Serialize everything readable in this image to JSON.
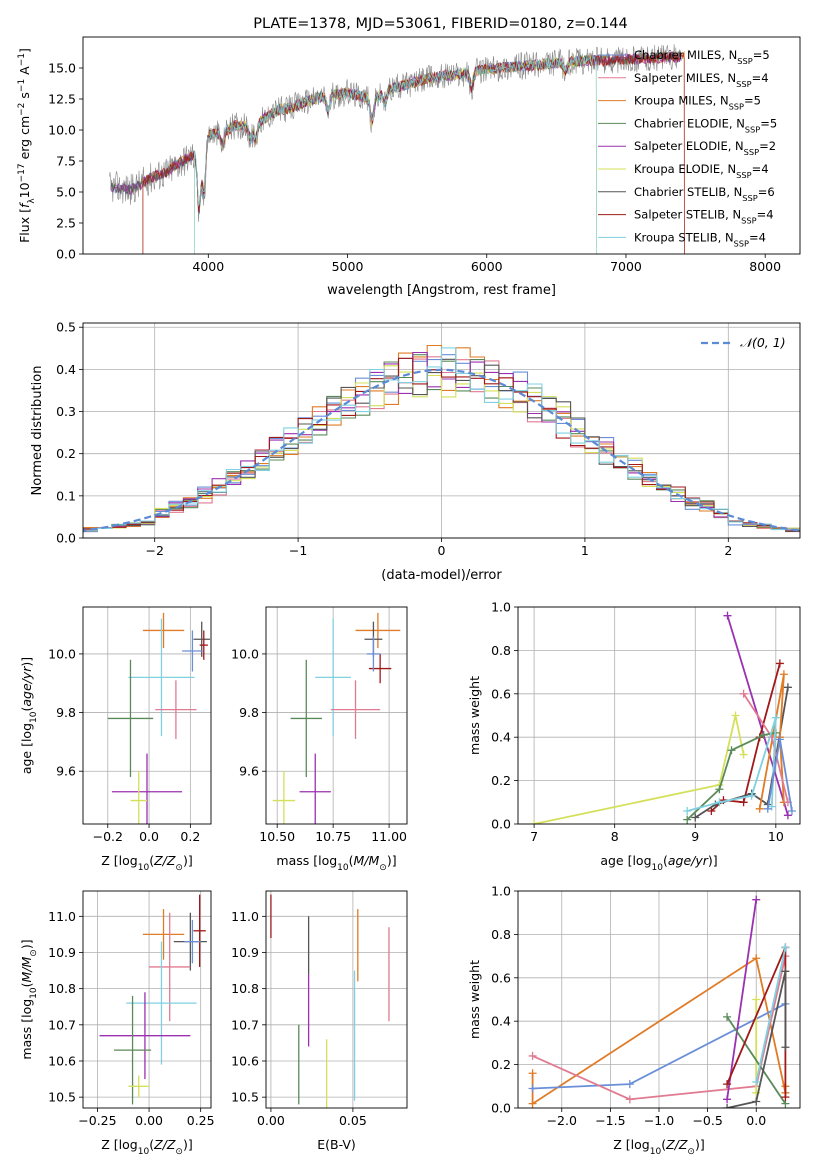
{
  "colors": {
    "chabrier_miles": "#6a8fd8",
    "salpeter_miles": "#e07b91",
    "kroupa_miles": "#e07b26",
    "chabrier_elodie": "#5a8a5a",
    "salpeter_elodie": "#9b30b0",
    "kroupa_elodie": "#d4e05a",
    "chabrier_stelib": "#555555",
    "salpeter_stelib": "#a01818",
    "kroupa_stelib": "#7fd0e0",
    "normal_curve": "#5b8bd6",
    "grid": "#b0b0b0"
  },
  "chart_data": [
    {
      "id": "spectrum",
      "type": "line",
      "title": "PLATE=1378, MJD=53061, FIBERID=0180, z=0.144",
      "xlabel": "wavelength [Angstrom, rest frame]",
      "ylabel": "Flux [f_λ 10^-17 erg cm^-2 s^-1 A^-1]",
      "xlim": [
        3100,
        8250
      ],
      "ylim": [
        0,
        17.5
      ],
      "xticks": [
        "4000",
        "5000",
        "6000",
        "7000",
        "8000"
      ],
      "yticks": [
        "0.0",
        "2.5",
        "5.0",
        "7.5",
        "10.0",
        "12.5",
        "15.0"
      ],
      "legend_position": "right",
      "legend": [
        {
          "label": "Chabrier MILES, N_SSP=5",
          "color": "chabrier_miles"
        },
        {
          "label": "Salpeter MILES, N_SSP=4",
          "color": "salpeter_miles"
        },
        {
          "label": "Kroupa MILES, N_SSP=5",
          "color": "kroupa_miles"
        },
        {
          "label": "Chabrier ELODIE, N_SSP=5",
          "color": "chabrier_elodie"
        },
        {
          "label": "Salpeter ELODIE, N_SSP=2",
          "color": "salpeter_elodie"
        },
        {
          "label": "Kroupa ELODIE, N_SSP=4",
          "color": "kroupa_elodie"
        },
        {
          "label": "Chabrier STELIB, N_SSP=6",
          "color": "chabrier_stelib"
        },
        {
          "label": "Salpeter STELIB, N_SSP=4",
          "color": "salpeter_stelib"
        },
        {
          "label": "Kroupa STELIB, N_SSP=4",
          "color": "kroupa_stelib"
        }
      ],
      "continuum": [
        [
          3300,
          5.4
        ],
        [
          3450,
          5.2
        ],
        [
          3600,
          6.2
        ],
        [
          3700,
          6.6
        ],
        [
          3800,
          7.4
        ],
        [
          3900,
          8.0
        ],
        [
          4000,
          9.6
        ],
        [
          4100,
          9.8
        ],
        [
          4200,
          10.4
        ],
        [
          4300,
          10.2
        ],
        [
          4400,
          10.9
        ],
        [
          4500,
          11.6
        ],
        [
          4600,
          11.8
        ],
        [
          4700,
          12.3
        ],
        [
          4800,
          12.6
        ],
        [
          4900,
          12.8
        ],
        [
          5000,
          13.0
        ],
        [
          5100,
          12.7
        ],
        [
          5200,
          12.5
        ],
        [
          5300,
          13.3
        ],
        [
          5400,
          13.6
        ],
        [
          5500,
          13.9
        ],
        [
          5600,
          14.2
        ],
        [
          5700,
          14.4
        ],
        [
          5800,
          14.5
        ],
        [
          5900,
          14.7
        ],
        [
          6000,
          14.9
        ],
        [
          6100,
          15.0
        ],
        [
          6200,
          15.1
        ],
        [
          6300,
          15.2
        ],
        [
          6400,
          15.3
        ],
        [
          6500,
          15.4
        ],
        [
          6600,
          15.5
        ],
        [
          6700,
          15.6
        ],
        [
          6800,
          15.6
        ],
        [
          7000,
          15.7
        ],
        [
          7200,
          15.8
        ],
        [
          7400,
          15.9
        ]
      ],
      "features": [
        [
          3934,
          5.4
        ],
        [
          3968,
          4.5
        ],
        [
          4101,
          1.2
        ],
        [
          4304,
          1.0
        ],
        [
          4340,
          1.4
        ],
        [
          4861,
          1.3
        ],
        [
          5175,
          2.2
        ],
        [
          5270,
          1.0
        ],
        [
          5890,
          1.4
        ],
        [
          6563,
          0.8
        ]
      ],
      "drops": [
        {
          "series": "kroupa_miles",
          "edges": [
            3530,
            7420
          ]
        },
        {
          "series": "kroupa_elodie",
          "edges": [
            3900,
            6790
          ]
        },
        {
          "series": "salpeter_stelib",
          "edges": [
            3530,
            7420
          ]
        },
        {
          "series": "kroupa_stelib",
          "edges": [
            3900,
            6790
          ]
        }
      ]
    },
    {
      "id": "residuals",
      "type": "histogram",
      "xlabel": "(data-model)/error",
      "ylabel": "Normed distribution",
      "xlim": [
        -2.5,
        2.5
      ],
      "ylim": [
        0,
        0.51
      ],
      "xticks": [
        "−2",
        "−1",
        "0",
        "1",
        "2"
      ],
      "yticks": [
        "0.0",
        "0.1",
        "0.2",
        "0.3",
        "0.4",
        "0.5"
      ],
      "bin_width": 0.1,
      "legend": [
        {
          "label": "𝒩(0, 1)",
          "color": "normal_curve",
          "style": "dashed"
        }
      ],
      "legend_position": "top-right",
      "series": [
        {
          "name": "chabrier_miles",
          "seed": 1
        },
        {
          "name": "salpeter_miles",
          "seed": 2
        },
        {
          "name": "kroupa_miles",
          "seed": 3
        },
        {
          "name": "chabrier_elodie",
          "seed": 4
        },
        {
          "name": "salpeter_elodie",
          "seed": 5
        },
        {
          "name": "kroupa_elodie",
          "seed": 6
        },
        {
          "name": "chabrier_stelib",
          "seed": 7
        },
        {
          "name": "salpeter_stelib",
          "seed": 8
        },
        {
          "name": "kroupa_stelib",
          "seed": 9
        }
      ]
    },
    {
      "id": "age_vs_Z",
      "type": "errorbar",
      "xlabel": "Z [log10(Z/Z⊙)]",
      "ylabel": "age  [log10(age/yr)]",
      "xlim": [
        -0.32,
        0.3
      ],
      "ylim": [
        9.42,
        10.16
      ],
      "xticks": [
        "−0.2",
        "0.0",
        "0.2"
      ],
      "yticks": [
        "9.6",
        "9.8",
        "10.0"
      ],
      "points": [
        {
          "s": "kroupa_miles",
          "x": 0.07,
          "xe": 0.1,
          "y": 10.08,
          "ye": 0.06
        },
        {
          "s": "chabrier_stelib",
          "x": 0.255,
          "xe": 0.04,
          "y": 10.05,
          "ye": 0.06
        },
        {
          "s": "salpeter_stelib",
          "x": 0.265,
          "xe": 0.02,
          "y": 10.03,
          "ye": 0.05
        },
        {
          "s": "chabrier_miles",
          "x": 0.21,
          "xe": 0.05,
          "y": 10.01,
          "ye": 0.07
        },
        {
          "s": "kroupa_stelib",
          "x": 0.06,
          "xe": 0.16,
          "y": 9.92,
          "ye": 0.2
        },
        {
          "s": "salpeter_miles",
          "x": 0.13,
          "xe": 0.1,
          "y": 9.81,
          "ye": 0.1
        },
        {
          "s": "chabrier_elodie",
          "x": -0.09,
          "xe": 0.11,
          "y": 9.78,
          "ye": 0.2
        },
        {
          "s": "salpeter_elodie",
          "x": -0.01,
          "xe": 0.17,
          "y": 9.53,
          "ye": 0.13
        },
        {
          "s": "kroupa_elodie",
          "x": -0.05,
          "xe": 0.04,
          "y": 9.5,
          "ye": 0.1
        }
      ]
    },
    {
      "id": "age_vs_mass",
      "type": "errorbar",
      "xlabel": "mass [log10(M/M⊙)]",
      "ylabel": "",
      "xlim": [
        10.45,
        11.08
      ],
      "ylim": [
        9.42,
        10.16
      ],
      "xticks": [
        "10.50",
        "10.75",
        "11.00"
      ],
      "yticks": [
        "9.6",
        "9.8",
        "10.0"
      ],
      "points": [
        {
          "s": "kroupa_miles",
          "x": 10.95,
          "xe": 0.1,
          "y": 10.08,
          "ye": 0.06
        },
        {
          "s": "chabrier_stelib",
          "x": 10.93,
          "xe": 0.04,
          "y": 10.05,
          "ye": 0.06
        },
        {
          "s": "salpeter_stelib",
          "x": 10.96,
          "xe": 0.05,
          "y": 9.95,
          "ye": 0.05
        },
        {
          "s": "chabrier_miles",
          "x": 10.93,
          "xe": 0.03,
          "y": 10.0,
          "ye": 0.06
        },
        {
          "s": "kroupa_stelib",
          "x": 10.75,
          "xe": 0.08,
          "y": 9.92,
          "ye": 0.2
        },
        {
          "s": "salpeter_miles",
          "x": 10.85,
          "xe": 0.11,
          "y": 9.81,
          "ye": 0.1
        },
        {
          "s": "chabrier_elodie",
          "x": 10.63,
          "xe": 0.07,
          "y": 9.78,
          "ye": 0.2
        },
        {
          "s": "salpeter_elodie",
          "x": 10.67,
          "xe": 0.07,
          "y": 9.53,
          "ye": 0.13
        },
        {
          "s": "kroupa_elodie",
          "x": 10.53,
          "xe": 0.05,
          "y": 9.5,
          "ye": 0.1
        }
      ]
    },
    {
      "id": "mass_weight_vs_age",
      "type": "line",
      "xlabel": "age  [log10(age/yr)]",
      "ylabel": "mass weight",
      "xlim": [
        6.8,
        10.3
      ],
      "ylim": [
        0,
        1.0
      ],
      "xticks": [
        "7",
        "8",
        "9",
        "10"
      ],
      "yticks": [
        "0.0",
        "0.2",
        "0.4",
        "0.6",
        "0.8",
        "1.0"
      ],
      "series": [
        {
          "name": "salpeter_elodie",
          "x": [
            9.4,
            10.15
          ],
          "y": [
            0.96,
            0.04
          ]
        },
        {
          "name": "salpeter_stelib",
          "x": [
            9.2,
            9.35,
            9.6,
            9.8,
            10.05
          ],
          "y": [
            0.06,
            0.11,
            0.1,
            0.4,
            0.74
          ]
        },
        {
          "name": "chabrier_stelib",
          "x": [
            9.0,
            9.25,
            9.7,
            9.9,
            10.15
          ],
          "y": [
            0.03,
            0.09,
            0.14,
            0.09,
            0.63
          ]
        },
        {
          "name": "kroupa_miles",
          "x": [
            9.8,
            10.1,
            10.05,
            10.1
          ],
          "y": [
            0.07,
            0.69,
            0.4,
            0.1
          ]
        },
        {
          "name": "salpeter_miles",
          "x": [
            9.6,
            9.95,
            10.15
          ],
          "y": [
            0.6,
            0.4,
            0.1
          ]
        },
        {
          "name": "kroupa_elodie",
          "x": [
            7.0,
            9.3,
            9.5,
            9.6
          ],
          "y": [
            0.0,
            0.18,
            0.5,
            0.32
          ]
        },
        {
          "name": "chabrier_elodie",
          "x": [
            8.9,
            9.3,
            9.45,
            9.85,
            10.0
          ],
          "y": [
            0.02,
            0.16,
            0.34,
            0.41,
            0.42
          ]
        },
        {
          "name": "kroupa_stelib",
          "x": [
            8.9,
            9.3,
            9.7,
            10.0,
            9.95
          ],
          "y": [
            0.06,
            0.1,
            0.13,
            0.49,
            0.08
          ]
        },
        {
          "name": "chabrier_miles",
          "x": [
            9.9,
            10.05,
            10.2
          ],
          "y": [
            0.07,
            0.39,
            0.06
          ]
        }
      ]
    },
    {
      "id": "mass_vs_Z",
      "type": "errorbar",
      "xlabel": "Z [log10(Z/Z⊙)]",
      "ylabel": "mass [log10(M/M⊙)]",
      "xlim": [
        -0.32,
        0.3
      ],
      "ylim": [
        10.47,
        11.07
      ],
      "xticks": [
        "−0.25",
        "0.00",
        "0.25"
      ],
      "yticks": [
        "10.5",
        "10.6",
        "10.7",
        "10.8",
        "10.9",
        "11.0"
      ],
      "points": [
        {
          "s": "kroupa_miles",
          "x": 0.07,
          "xe": 0.1,
          "y": 10.95,
          "ye": 0.07
        },
        {
          "s": "salpeter_stelib",
          "x": 0.245,
          "xe": 0.03,
          "y": 10.96,
          "ye": 0.1
        },
        {
          "s": "chabrier_stelib",
          "x": 0.2,
          "xe": 0.08,
          "y": 10.93,
          "ye": 0.08
        },
        {
          "s": "chabrier_miles",
          "x": 0.21,
          "xe": 0.04,
          "y": 10.93,
          "ye": 0.06
        },
        {
          "s": "salpeter_miles",
          "x": 0.1,
          "xe": 0.1,
          "y": 10.86,
          "ye": 0.15
        },
        {
          "s": "kroupa_stelib",
          "x": 0.06,
          "xe": 0.17,
          "y": 10.76,
          "ye": 0.17
        },
        {
          "s": "salpeter_elodie",
          "x": -0.02,
          "xe": 0.22,
          "y": 10.67,
          "ye": 0.12
        },
        {
          "s": "chabrier_elodie",
          "x": -0.08,
          "xe": 0.09,
          "y": 10.63,
          "ye": 0.15
        },
        {
          "s": "kroupa_elodie",
          "x": -0.05,
          "xe": 0.05,
          "y": 10.53,
          "ye": 0.03
        }
      ]
    },
    {
      "id": "mass_vs_ebv",
      "type": "errorbar",
      "xlabel": "E(B-V)",
      "ylabel": "",
      "xlim": [
        -0.003,
        0.083
      ],
      "ylim": [
        10.47,
        11.07
      ],
      "xticks": [
        "0.00",
        "0.05"
      ],
      "yticks": [
        "10.5",
        "10.6",
        "10.7",
        "10.8",
        "10.9",
        "11.0"
      ],
      "points": [
        {
          "s": "salpeter_stelib",
          "x": 0.0,
          "xe": 0,
          "y": 11.0,
          "ye": 0.06
        },
        {
          "s": "chabrier_stelib",
          "x": 0.023,
          "xe": 0,
          "y": 10.92,
          "ye": 0.08
        },
        {
          "s": "salpeter_elodie",
          "x": 0.023,
          "xe": 0,
          "y": 10.74,
          "ye": 0.1
        },
        {
          "s": "chabrier_elodie",
          "x": 0.017,
          "xe": 0,
          "y": 10.59,
          "ye": 0.11
        },
        {
          "s": "kroupa_elodie",
          "x": 0.034,
          "xe": 0,
          "y": 10.56,
          "ye": 0.1
        },
        {
          "s": "kroupa_miles",
          "x": 0.053,
          "xe": 0,
          "y": 10.92,
          "ye": 0.1
        },
        {
          "s": "kroupa_stelib",
          "x": 0.051,
          "xe": 0,
          "y": 10.67,
          "ye": 0.18
        },
        {
          "s": "salpeter_miles",
          "x": 0.072,
          "xe": 0,
          "y": 10.84,
          "ye": 0.13
        }
      ]
    },
    {
      "id": "mass_weight_vs_Z",
      "type": "line",
      "xlabel": "Z [log10(Z/Z⊙)]",
      "ylabel": "mass weight",
      "xlim": [
        -2.45,
        0.45
      ],
      "ylim": [
        0,
        1.0
      ],
      "xticks": [
        "−2.0",
        "−1.5",
        "−1.0",
        "−0.5",
        "0.0"
      ],
      "yticks": [
        "0.0",
        "0.2",
        "0.4",
        "0.6",
        "0.8",
        "1.0"
      ],
      "series": [
        {
          "name": "kroupa_miles",
          "x": [
            -2.3,
            -2.3,
            0.0,
            0.3,
            0.3
          ],
          "y": [
            0.16,
            0.02,
            0.69,
            0.07,
            0.1
          ]
        },
        {
          "name": "chabrier_miles",
          "x": [
            -2.3,
            -1.3,
            0.3
          ],
          "y": [
            0.09,
            0.11,
            0.48
          ]
        },
        {
          "name": "salpeter_miles",
          "x": [
            -2.3,
            -1.3,
            0.0,
            0.3
          ],
          "y": [
            0.24,
            0.04,
            0.1,
            0.7
          ]
        },
        {
          "name": "salpeter_elodie",
          "x": [
            -0.3,
            0.0
          ],
          "y": [
            0.04,
            0.96
          ]
        },
        {
          "name": "kroupa_elodie",
          "x": [
            0.0,
            0.0
          ],
          "y": [
            0.5,
            0.07
          ]
        },
        {
          "name": "chabrier_elodie",
          "x": [
            -0.3,
            0.3
          ],
          "y": [
            0.42,
            0.02
          ]
        },
        {
          "name": "salpeter_stelib",
          "x": [
            -0.3,
            0.3,
            0.3
          ],
          "y": [
            0.11,
            0.74,
            0.05
          ]
        },
        {
          "name": "chabrier_stelib",
          "x": [
            -0.3,
            0.0,
            0.3,
            0.3
          ],
          "y": [
            0.0,
            0.03,
            0.63,
            0.28
          ]
        },
        {
          "name": "kroupa_stelib",
          "x": [
            0.0,
            0.3
          ],
          "y": [
            0.12,
            0.74
          ]
        }
      ]
    }
  ]
}
